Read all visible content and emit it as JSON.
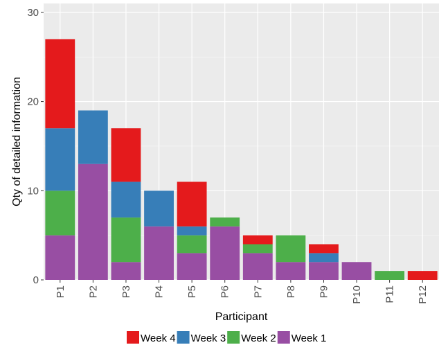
{
  "chart_data": {
    "type": "bar",
    "stacked": true,
    "categories": [
      "P1",
      "P2",
      "P3",
      "P4",
      "P5",
      "P6",
      "P7",
      "P8",
      "P9",
      "P10",
      "P11",
      "P12"
    ],
    "series": [
      {
        "name": "Week 1",
        "color": "#984EA3",
        "values": [
          5,
          13,
          2,
          6,
          3,
          6,
          3,
          2,
          2,
          2,
          0,
          0
        ]
      },
      {
        "name": "Week 2",
        "color": "#4DAF4A",
        "values": [
          5,
          0,
          5,
          0,
          2,
          1,
          1,
          3,
          0,
          0,
          1,
          0
        ]
      },
      {
        "name": "Week 3",
        "color": "#377EB8",
        "values": [
          7,
          6,
          4,
          4,
          1,
          0,
          0,
          0,
          1,
          0,
          0,
          0
        ]
      },
      {
        "name": "Week 4",
        "color": "#E41A1C",
        "values": [
          10,
          0,
          6,
          0,
          5,
          0,
          1,
          0,
          1,
          0,
          0,
          1
        ]
      }
    ],
    "legend_order": [
      "Week 4",
      "Week 3",
      "Week 2",
      "Week 1"
    ],
    "legend_position": "bottom",
    "title": "",
    "xlabel": "Participant",
    "ylabel": "Qty of detailed information",
    "ylim": [
      0,
      31
    ],
    "yticks": [
      0,
      10,
      20,
      30
    ],
    "grid": true,
    "panel_background": "#EBEBEB"
  }
}
